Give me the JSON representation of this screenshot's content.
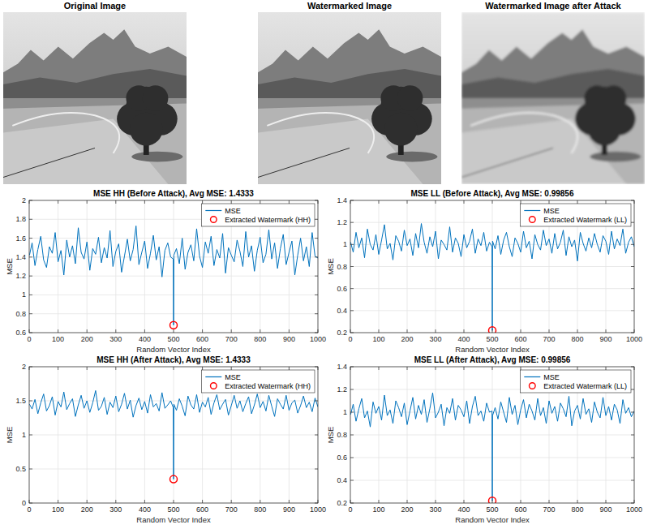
{
  "images": [
    {
      "title": "Original Image"
    },
    {
      "title": "Watermarked Image"
    },
    {
      "title": "Watermarked Image after Attack"
    }
  ],
  "chart_data": [
    {
      "type": "line",
      "title": "MSE HH (Before Attack), Avg MSE: 1.4333",
      "x_label": "Random Vector Index",
      "y_label": "MSE",
      "x": [
        1,
        10,
        20,
        30,
        40,
        50,
        60,
        70,
        80,
        90,
        100,
        110,
        120,
        130,
        140,
        150,
        160,
        170,
        180,
        190,
        200,
        210,
        220,
        230,
        240,
        250,
        260,
        270,
        280,
        290,
        300,
        310,
        320,
        330,
        340,
        350,
        360,
        370,
        380,
        390,
        400,
        410,
        420,
        430,
        440,
        450,
        460,
        470,
        480,
        490,
        499,
        500,
        501,
        510,
        520,
        530,
        540,
        550,
        560,
        570,
        580,
        590,
        600,
        610,
        620,
        630,
        640,
        650,
        660,
        670,
        680,
        690,
        700,
        710,
        720,
        730,
        740,
        750,
        760,
        770,
        780,
        790,
        800,
        810,
        820,
        830,
        840,
        850,
        860,
        870,
        880,
        890,
        900,
        910,
        920,
        930,
        940,
        950,
        960,
        970,
        980,
        990,
        1000
      ],
      "series": [
        {
          "name": "MSE",
          "type": "line",
          "color": "#0072bd",
          "values": [
            1.42,
            1.55,
            1.31,
            1.48,
            1.62,
            1.37,
            1.29,
            1.51,
            1.44,
            1.66,
            1.35,
            1.47,
            1.21,
            1.58,
            1.4,
            1.52,
            1.33,
            1.71,
            1.45,
            1.38,
            1.56,
            1.26,
            1.49,
            1.43,
            1.61,
            1.34,
            1.5,
            1.39,
            1.68,
            1.3,
            1.46,
            1.54,
            1.24,
            1.41,
            1.59,
            1.36,
            1.48,
            1.73,
            1.32,
            1.45,
            1.57,
            1.28,
            1.44,
            1.63,
            1.37,
            1.51,
            1.19,
            1.47,
            1.55,
            1.4,
            1.38,
            0.68,
            1.42,
            1.49,
            1.33,
            1.6,
            1.27,
            1.45,
            1.53,
            1.36,
            1.7,
            1.41,
            1.29,
            1.56,
            1.44,
            1.62,
            1.31,
            1.48,
            1.39,
            1.65,
            1.23,
            1.5,
            1.42,
            1.35,
            1.58,
            1.46,
            1.3,
            1.67,
            1.4,
            1.52,
            1.25,
            1.47,
            1.61,
            1.34,
            1.43,
            1.69,
            1.38,
            1.55,
            1.28,
            1.49,
            1.64,
            1.32,
            1.45,
            1.57,
            1.21,
            1.42,
            1.6,
            1.36,
            1.51,
            1.3,
            1.66,
            1.41,
            1.39
          ]
        },
        {
          "name": "Extracted Watermark (HH)",
          "type": "scatter",
          "marker": "circle",
          "color": "#ff0000",
          "x": [
            500
          ],
          "values": [
            0.68
          ]
        }
      ],
      "xlim": [
        0,
        1000
      ],
      "xticks": [
        0,
        100,
        200,
        300,
        400,
        500,
        600,
        700,
        800,
        900,
        1000
      ],
      "ylim": [
        0.6,
        2
      ],
      "yticks": [
        0.6,
        0.8,
        1,
        1.2,
        1.4,
        1.6,
        1.8,
        2
      ],
      "grid": true,
      "legend": "northeast"
    },
    {
      "type": "line",
      "title": "MSE LL (Before Attack), Avg MSE: 0.99856",
      "x_label": "Random Vector Index",
      "y_label": "MSE",
      "x": [
        1,
        10,
        20,
        30,
        40,
        50,
        60,
        70,
        80,
        90,
        100,
        110,
        120,
        130,
        140,
        150,
        160,
        170,
        180,
        190,
        200,
        210,
        220,
        230,
        240,
        250,
        260,
        270,
        280,
        290,
        300,
        310,
        320,
        330,
        340,
        350,
        360,
        370,
        380,
        390,
        400,
        410,
        420,
        430,
        440,
        450,
        460,
        470,
        480,
        490,
        499,
        500,
        501,
        510,
        520,
        530,
        540,
        550,
        560,
        570,
        580,
        590,
        600,
        610,
        620,
        630,
        640,
        650,
        660,
        670,
        680,
        690,
        700,
        710,
        720,
        730,
        740,
        750,
        760,
        770,
        780,
        790,
        800,
        810,
        820,
        830,
        840,
        850,
        860,
        870,
        880,
        890,
        900,
        910,
        920,
        930,
        940,
        950,
        960,
        970,
        980,
        990,
        1000
      ],
      "series": [
        {
          "name": "MSE",
          "type": "line",
          "color": "#0072bd",
          "values": [
            1.02,
            0.93,
            1.11,
            0.97,
            1.06,
            0.88,
            1.14,
            1.0,
            0.95,
            1.09,
            0.91,
            1.04,
            1.18,
            0.96,
            1.01,
            0.86,
            1.08,
            1.03,
            0.94,
            1.13,
            0.99,
            1.05,
            0.9,
            1.1,
            0.97,
            1.19,
            1.02,
            0.92,
            1.07,
            0.98,
            1.12,
            0.87,
            1.04,
            1.0,
            0.95,
            1.16,
            0.93,
            1.06,
            1.01,
            0.89,
            1.09,
            0.97,
            1.03,
            1.14,
            0.92,
            1.05,
            0.99,
            1.11,
            0.94,
            1.02,
            0.98,
            0.22,
            1.03,
            0.96,
            1.08,
            0.91,
            1.04,
            1.11,
            0.98,
            0.89,
            1.06,
            1.01,
            0.93,
            1.12,
            0.97,
            1.03,
            0.87,
            1.09,
            1.0,
            0.95,
            1.13,
            0.99,
            1.05,
            0.92,
            1.1,
            0.96,
            1.02,
            1.13,
            0.9,
            1.07,
            0.98,
            1.04,
            0.85,
            1.11,
            1.01,
            0.94,
            1.06,
            0.97,
            1.1,
            1.0,
            0.93,
            1.08,
            1.03,
            0.91,
            1.12,
            0.96,
            1.05,
            0.99,
            1.14,
            0.92,
            1.02,
            1.07,
            0.98
          ]
        },
        {
          "name": "Extracted Watermark (LL)",
          "type": "scatter",
          "marker": "circle",
          "color": "#ff0000",
          "x": [
            500
          ],
          "values": [
            0.22
          ]
        }
      ],
      "xlim": [
        0,
        1000
      ],
      "xticks": [
        0,
        100,
        200,
        300,
        400,
        500,
        600,
        700,
        800,
        900,
        1000
      ],
      "ylim": [
        0.2,
        1.4
      ],
      "yticks": [
        0.2,
        0.4,
        0.6,
        0.8,
        1,
        1.2,
        1.4
      ],
      "grid": true,
      "legend": "northeast"
    },
    {
      "type": "line",
      "title": "MSE HH (After Attack), Avg MSE: 1.4333",
      "x_label": "Random Vector Index",
      "y_label": "MSE",
      "x": [
        1,
        10,
        20,
        30,
        40,
        50,
        60,
        70,
        80,
        90,
        100,
        110,
        120,
        130,
        140,
        150,
        160,
        170,
        180,
        190,
        200,
        210,
        220,
        230,
        240,
        250,
        260,
        270,
        280,
        290,
        300,
        310,
        320,
        330,
        340,
        350,
        360,
        370,
        380,
        390,
        400,
        410,
        420,
        430,
        440,
        450,
        460,
        470,
        480,
        490,
        499,
        500,
        501,
        510,
        520,
        530,
        540,
        550,
        560,
        570,
        580,
        590,
        600,
        610,
        620,
        630,
        640,
        650,
        660,
        670,
        680,
        690,
        700,
        710,
        720,
        730,
        740,
        750,
        760,
        770,
        780,
        790,
        800,
        810,
        820,
        830,
        840,
        850,
        860,
        870,
        880,
        890,
        900,
        910,
        920,
        930,
        940,
        950,
        960,
        970,
        980,
        990,
        1000
      ],
      "series": [
        {
          "name": "MSE",
          "type": "line",
          "color": "#0072bd",
          "values": [
            1.45,
            1.38,
            1.52,
            1.31,
            1.47,
            1.6,
            1.35,
            1.43,
            1.56,
            1.29,
            1.49,
            1.41,
            1.63,
            1.37,
            1.46,
            1.53,
            1.27,
            1.44,
            1.58,
            1.39,
            1.5,
            1.33,
            1.47,
            1.65,
            1.36,
            1.42,
            1.55,
            1.3,
            1.48,
            1.4,
            1.57,
            1.34,
            1.45,
            1.61,
            1.38,
            1.51,
            1.26,
            1.43,
            1.54,
            1.37,
            1.49,
            1.32,
            1.59,
            1.41,
            1.46,
            1.35,
            1.62,
            1.39,
            1.44,
            1.5,
            1.4,
            0.35,
            1.45,
            1.36,
            1.53,
            1.42,
            1.28,
            1.57,
            1.44,
            1.38,
            1.59,
            1.33,
            1.48,
            1.41,
            1.55,
            1.3,
            1.47,
            1.59,
            1.37,
            1.45,
            1.52,
            1.29,
            1.43,
            1.58,
            1.39,
            1.5,
            1.34,
            1.46,
            1.56,
            1.31,
            1.44,
            1.6,
            1.4,
            1.49,
            1.35,
            1.58,
            1.42,
            1.27,
            1.53,
            1.45,
            1.38,
            1.58,
            1.36,
            1.47,
            1.51,
            1.32,
            1.43,
            1.57,
            1.4,
            1.48,
            1.34,
            1.54,
            1.41
          ]
        },
        {
          "name": "Extracted Watermark (HH)",
          "type": "scatter",
          "marker": "circle",
          "color": "#ff0000",
          "x": [
            500
          ],
          "values": [
            0.35
          ]
        }
      ],
      "xlim": [
        0,
        1000
      ],
      "xticks": [
        0,
        100,
        200,
        300,
        400,
        500,
        600,
        700,
        800,
        900,
        1000
      ],
      "ylim": [
        0,
        2
      ],
      "yticks": [
        0,
        0.5,
        1,
        1.5,
        2
      ],
      "grid": true,
      "legend": "northeast"
    },
    {
      "type": "line",
      "title": "MSE LL (After Attack), Avg MSE: 0.99856",
      "x_label": "Random Vector Index",
      "y_label": "MSE",
      "x": [
        1,
        10,
        20,
        30,
        40,
        50,
        60,
        70,
        80,
        90,
        100,
        110,
        120,
        130,
        140,
        150,
        160,
        170,
        180,
        190,
        200,
        210,
        220,
        230,
        240,
        250,
        260,
        270,
        280,
        290,
        300,
        310,
        320,
        330,
        340,
        350,
        360,
        370,
        380,
        390,
        400,
        410,
        420,
        430,
        440,
        450,
        460,
        470,
        480,
        490,
        499,
        500,
        501,
        510,
        520,
        530,
        540,
        550,
        560,
        570,
        580,
        590,
        600,
        610,
        620,
        630,
        640,
        650,
        660,
        670,
        680,
        690,
        700,
        710,
        720,
        730,
        740,
        750,
        760,
        770,
        780,
        790,
        800,
        810,
        820,
        830,
        840,
        850,
        860,
        870,
        880,
        890,
        900,
        910,
        920,
        930,
        940,
        950,
        960,
        970,
        980,
        990,
        1000
      ],
      "series": [
        {
          "name": "MSE",
          "type": "line",
          "color": "#0072bd",
          "values": [
            0.98,
            1.07,
            0.92,
            1.03,
            1.12,
            0.95,
            1.01,
            0.87,
            1.09,
            0.99,
            1.05,
            0.93,
            1.15,
            0.97,
            1.02,
            0.9,
            1.1,
            1.04,
            0.96,
            1.08,
            0.89,
            1.01,
            1.13,
            0.94,
            1.06,
            0.98,
            1.11,
            0.91,
            1.03,
            1.17,
            0.95,
            1.0,
            1.07,
            0.88,
            1.04,
            0.99,
            1.12,
            0.93,
            1.06,
            1.02,
            0.96,
            1.1,
            0.9,
            1.05,
            1.14,
            0.97,
            1.01,
            0.92,
            1.08,
            1.0,
            1.01,
            0.22,
            0.97,
            1.04,
            0.94,
            1.09,
            1.0,
            0.91,
            1.13,
            0.98,
            1.06,
            0.89,
            1.02,
            1.11,
            0.95,
            1.07,
            1.01,
            0.93,
            1.12,
            0.97,
            1.04,
            0.9,
            1.1,
            0.99,
            1.05,
            0.92,
            1.08,
            1.03,
            0.96,
            1.14,
            0.88,
            1.01,
            1.06,
            0.94,
            1.12,
            0.98,
            1.03,
            0.91,
            1.09,
            1.0,
            0.95,
            1.13,
            0.97,
            1.05,
            0.93,
            1.07,
            1.02,
            0.9,
            1.11,
            0.99,
            1.04,
            0.96,
            1.01
          ]
        },
        {
          "name": "Extracted Watermark (LL)",
          "type": "scatter",
          "marker": "circle",
          "color": "#ff0000",
          "x": [
            500
          ],
          "values": [
            0.22
          ]
        }
      ],
      "xlim": [
        0,
        1000
      ],
      "xticks": [
        0,
        100,
        200,
        300,
        400,
        500,
        600,
        700,
        800,
        900,
        1000
      ],
      "ylim": [
        0.2,
        1.4
      ],
      "yticks": [
        0.2,
        0.4,
        0.6,
        0.8,
        1,
        1.2,
        1.4
      ],
      "grid": true,
      "legend": "northeast"
    }
  ]
}
